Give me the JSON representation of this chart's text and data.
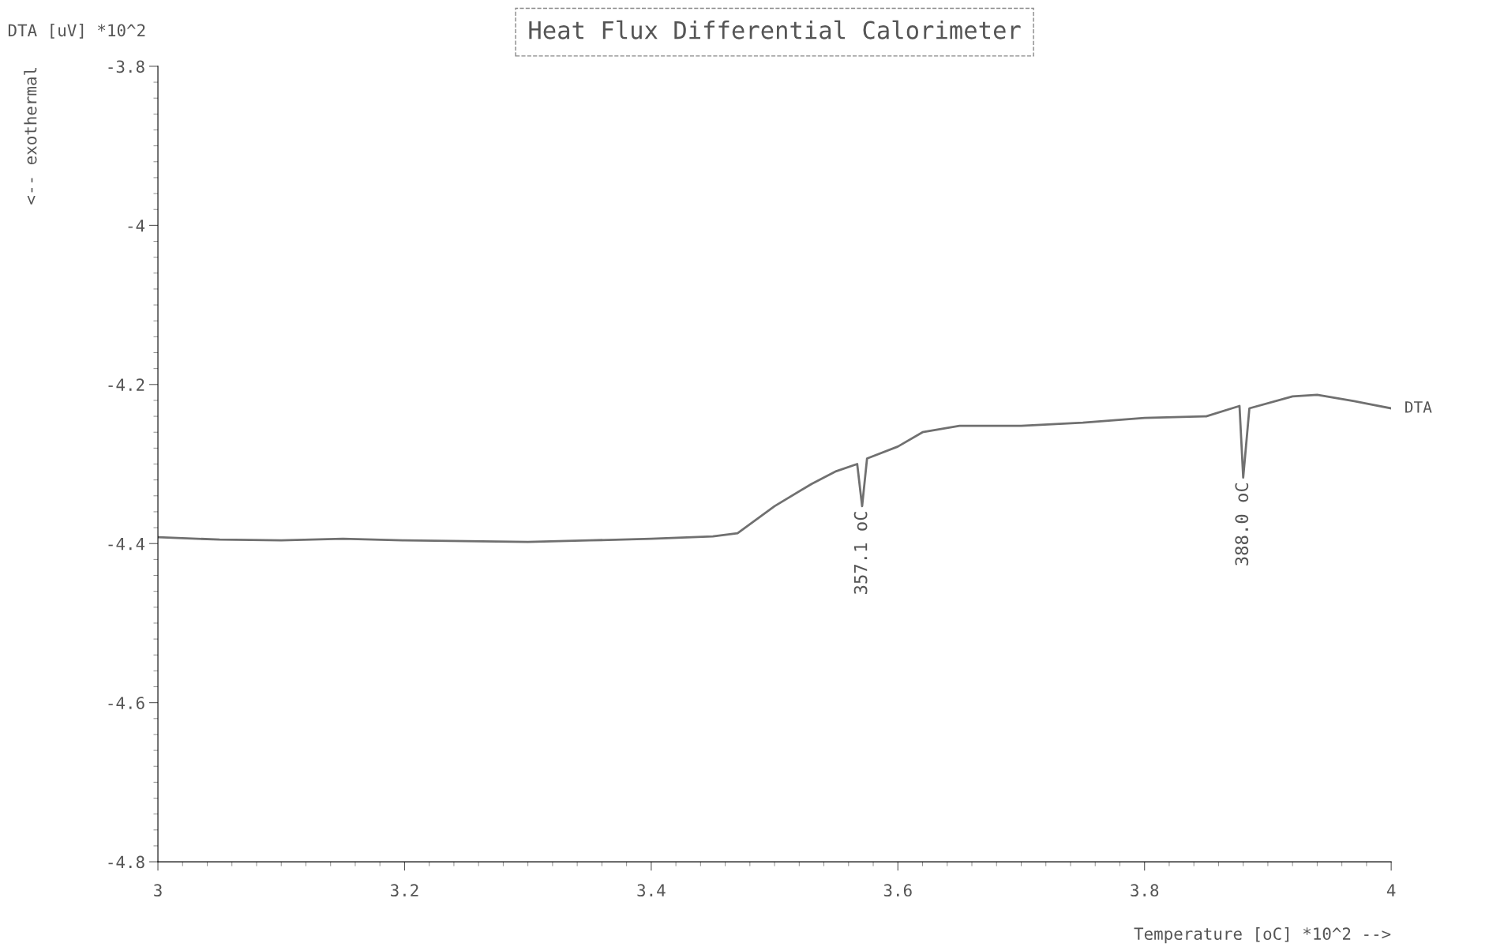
{
  "chart_data": {
    "type": "line",
    "title": "Heat Flux Differential Calorimeter",
    "xlabel": "Temperature [oC] *10^2 -->",
    "ylabel": "<-- exothermal",
    "annotations": [
      "DTA [uV] *10^2",
      {
        "text": "357.1 oC",
        "x": 3.571,
        "y": -4.353
      },
      {
        "text": "388.0 oC",
        "x": 3.88,
        "y": -4.317
      }
    ],
    "series": [
      {
        "name": "DTA",
        "color": "#707070",
        "x": [
          3.0,
          3.05,
          3.1,
          3.15,
          3.2,
          3.25,
          3.3,
          3.35,
          3.4,
          3.45,
          3.47,
          3.5,
          3.53,
          3.55,
          3.567,
          3.571,
          3.575,
          3.6,
          3.62,
          3.65,
          3.7,
          3.75,
          3.8,
          3.85,
          3.877,
          3.88,
          3.885,
          3.92,
          3.94,
          3.97,
          4.0
        ],
        "values": [
          -4.392,
          -4.395,
          -4.396,
          -4.394,
          -4.396,
          -4.397,
          -4.398,
          -4.396,
          -4.394,
          -4.391,
          -4.387,
          -4.353,
          -4.325,
          -4.309,
          -4.3,
          -4.353,
          -4.293,
          -4.278,
          -4.26,
          -4.252,
          -4.252,
          -4.248,
          -4.242,
          -4.24,
          -4.227,
          -4.317,
          -4.23,
          -4.215,
          -4.213,
          -4.221,
          -4.23
        ]
      }
    ],
    "xlim": [
      3,
      4
    ],
    "ylim": [
      -4.8,
      -3.8
    ],
    "xticks": [
      3,
      3.2,
      3.4,
      3.6,
      3.8,
      4
    ],
    "yticks": [
      -4.8,
      -4.6,
      -4.4,
      -4.2,
      -4,
      -3.8
    ],
    "grid": false,
    "legend": false,
    "line_style": "solid",
    "marker": "none"
  }
}
